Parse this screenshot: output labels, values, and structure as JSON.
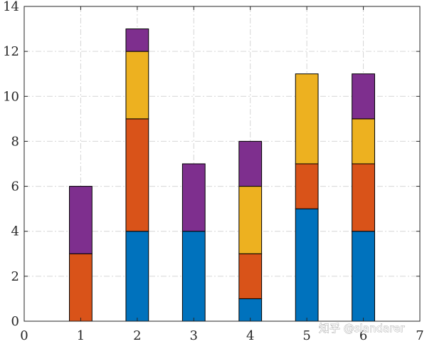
{
  "chart_data": {
    "type": "bar",
    "stacked": true,
    "x": [
      1,
      2,
      3,
      4,
      5,
      6
    ],
    "series": [
      {
        "color": "#0072BD",
        "values": [
          0,
          4,
          4,
          1,
          5,
          4
        ]
      },
      {
        "color": "#D95319",
        "values": [
          3,
          5,
          0,
          2,
          2,
          3
        ]
      },
      {
        "color": "#EDB120",
        "values": [
          0,
          3,
          0,
          3,
          4,
          2
        ]
      },
      {
        "color": "#7E2F8E",
        "values": [
          3,
          1,
          3,
          2,
          0,
          2
        ]
      }
    ],
    "xlim": [
      0,
      7
    ],
    "ylim": [
      0,
      14
    ],
    "xticks": [
      0,
      1,
      2,
      3,
      4,
      5,
      6,
      7
    ],
    "yticks": [
      0,
      2,
      4,
      6,
      8,
      10,
      12,
      14
    ],
    "grid": true,
    "grid_style": "dash-dot",
    "box": true,
    "bar_width_fraction": 0.4,
    "title": "",
    "xlabel": "",
    "ylabel": ""
  },
  "watermark": "知乎 @slandarer"
}
